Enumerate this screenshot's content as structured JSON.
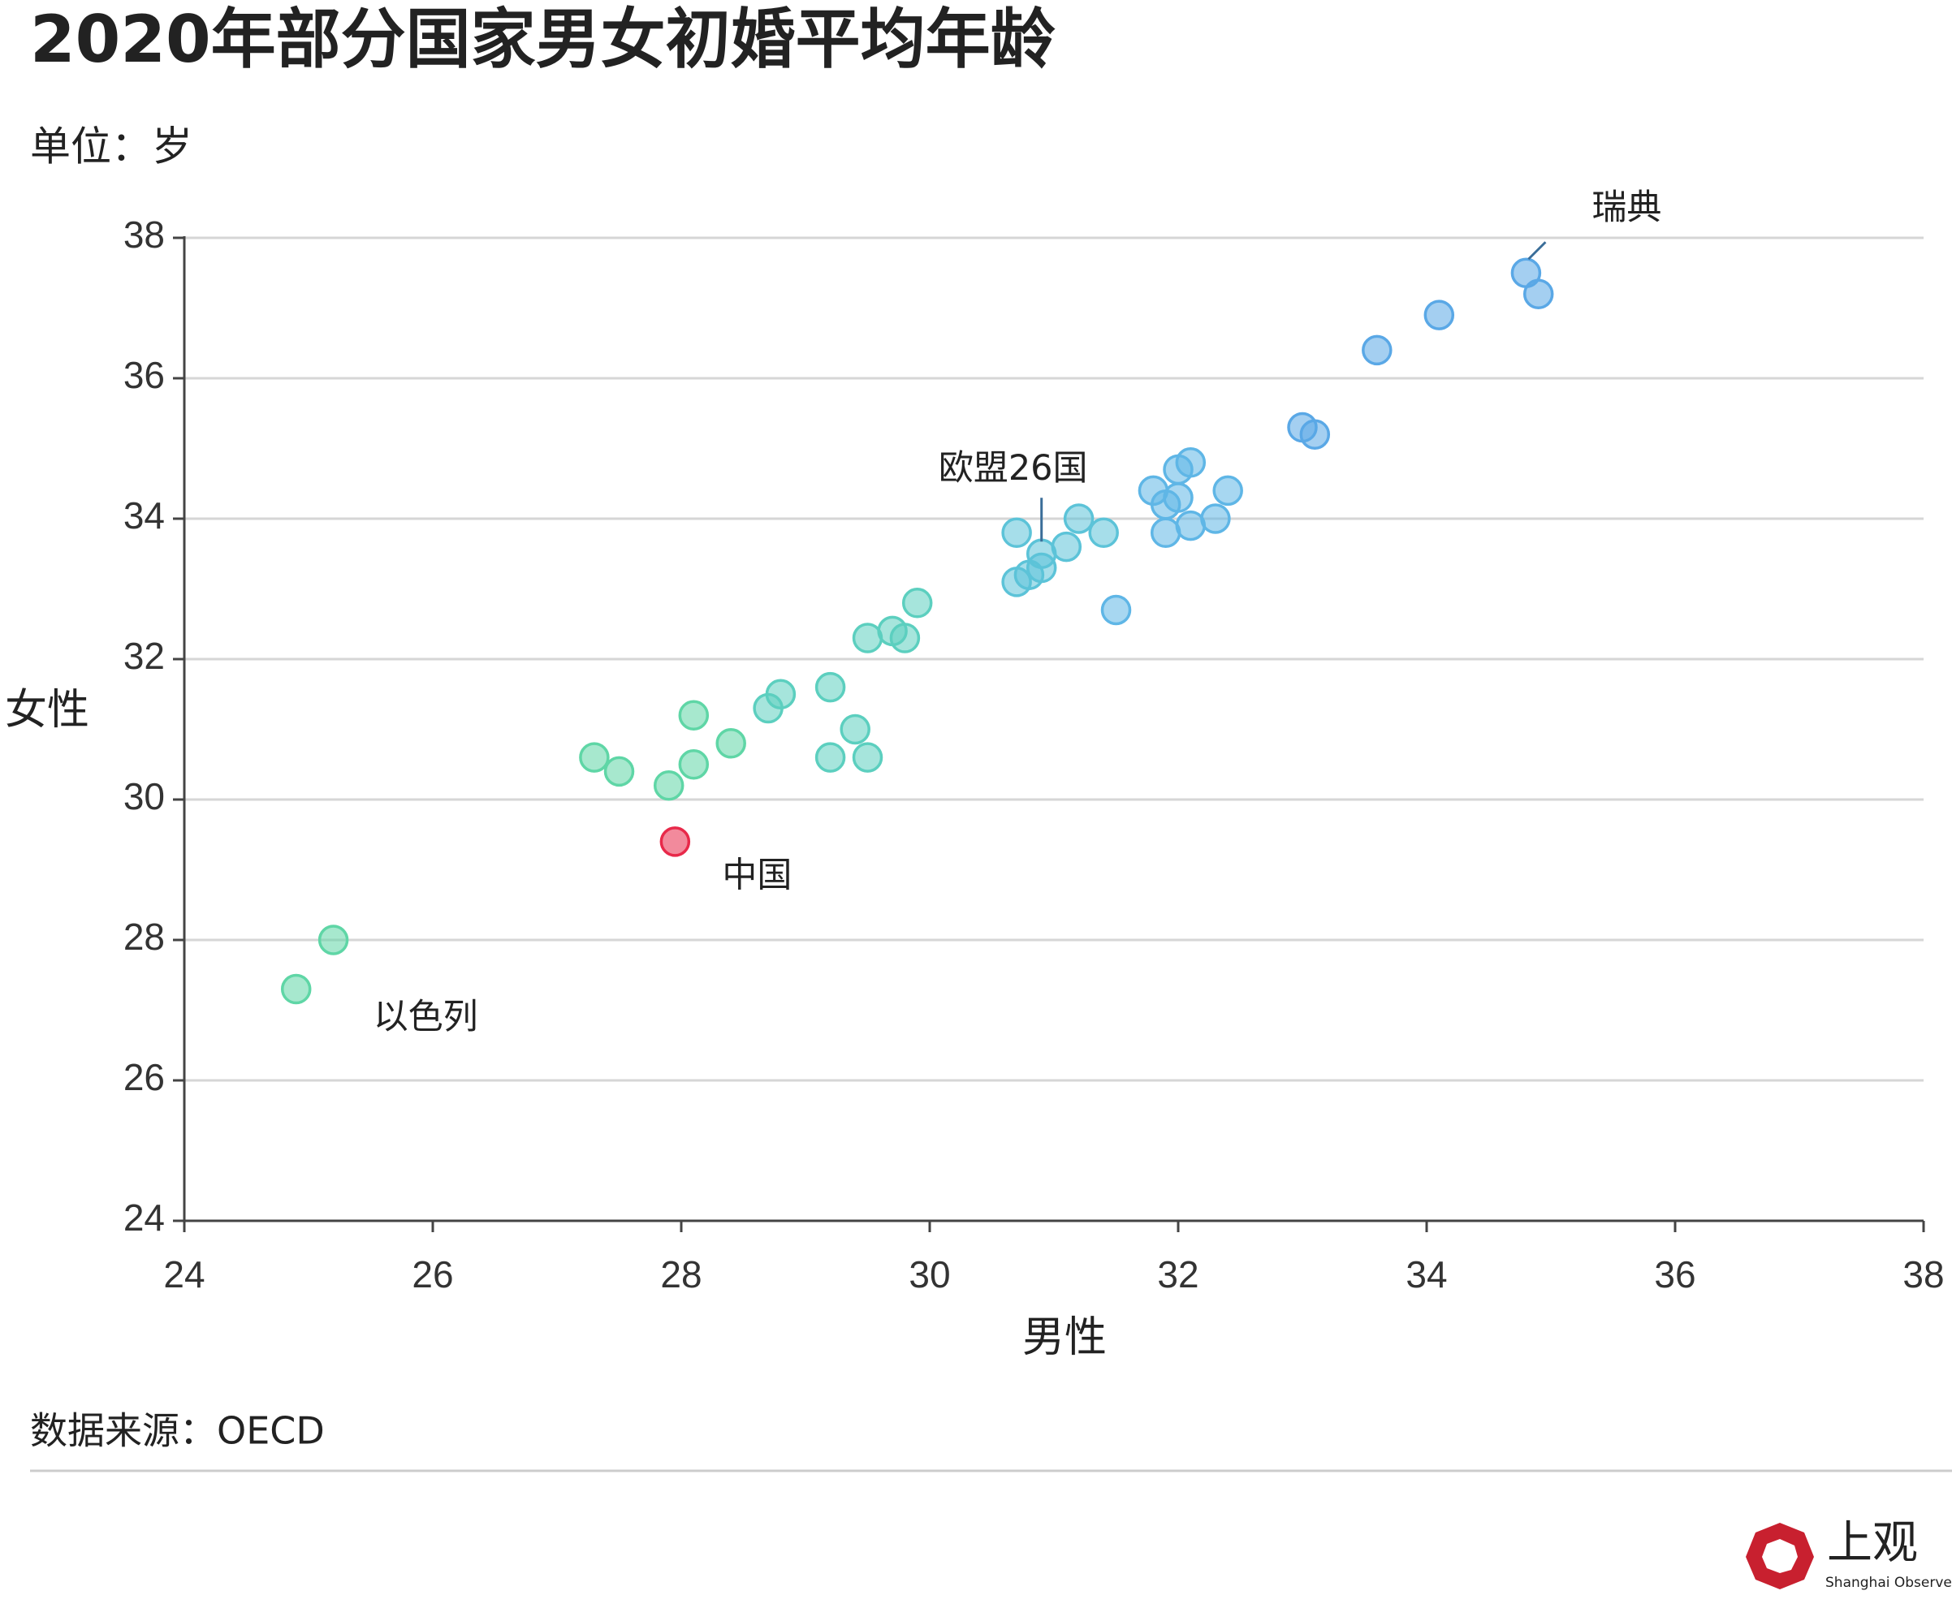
{
  "chart_data": {
    "type": "scatter",
    "title": "2020年部分国家男女初婚平均年龄",
    "subtitle": "单位：岁",
    "x_label": "男性",
    "y_label": "女性",
    "source": "数据来源：OECD",
    "logo": {
      "name": "上观",
      "name_en": "Shanghai Observer"
    },
    "x": [
      24.9,
      25.2,
      27.3,
      27.5,
      27.9,
      27.95,
      28.1,
      28.1,
      28.4,
      28.7,
      28.8,
      29.2,
      29.2,
      29.4,
      29.5,
      29.5,
      29.7,
      29.8,
      29.9,
      30.7,
      30.8,
      30.9,
      30.9,
      30.7,
      31.1,
      31.2,
      31.4,
      31.5,
      31.8,
      31.9,
      31.9,
      32.0,
      32.0,
      32.1,
      32.1,
      32.3,
      32.4,
      33.0,
      33.1,
      33.6,
      34.1,
      34.8,
      34.9
    ],
    "values": [
      27.3,
      28.0,
      30.6,
      30.4,
      30.2,
      29.4,
      31.2,
      30.5,
      30.8,
      31.3,
      31.5,
      31.6,
      30.6,
      31.0,
      30.6,
      32.3,
      32.4,
      32.3,
      32.8,
      33.1,
      33.2,
      33.3,
      33.5,
      33.8,
      33.6,
      34.0,
      33.8,
      32.7,
      34.4,
      34.2,
      33.8,
      34.3,
      34.7,
      34.8,
      33.9,
      34.0,
      34.4,
      35.3,
      35.2,
      36.4,
      36.9,
      37.5,
      37.2
    ],
    "colors": [
      "#5fd6a6",
      "#5fd6a6",
      "#5fd6a6",
      "#5fd6a6",
      "#5fd6a6",
      "#e8294a",
      "#5fd6a6",
      "#5fd6a6",
      "#5fd6a6",
      "#5ccfbf",
      "#5ccfbf",
      "#5ccfbf",
      "#5ccfbf",
      "#5ccfbf",
      "#5ccfbf",
      "#5ccfbf",
      "#5ccfbf",
      "#5ccfbf",
      "#5ccfbf",
      "#5cc3d8",
      "#5cc3d8",
      "#5cc3d8",
      "#5cc3d8",
      "#5cc3d8",
      "#5cc3d8",
      "#5cc3d8",
      "#5cc3d8",
      "#5fb6e6",
      "#5fb6e6",
      "#5fb6e6",
      "#5fb6e6",
      "#5fb6e6",
      "#5fb6e6",
      "#5fb6e6",
      "#5fb6e6",
      "#5fb6e6",
      "#5fb6e6",
      "#5aa8e6",
      "#5aa8e6",
      "#5aa8e6",
      "#5aa8e6",
      "#5aa8e6",
      "#5aa8e6"
    ],
    "labels": [
      "以色列",
      null,
      null,
      null,
      null,
      "中国",
      null,
      null,
      null,
      null,
      null,
      null,
      null,
      null,
      null,
      null,
      null,
      null,
      null,
      null,
      null,
      null,
      "欧盟26国",
      null,
      null,
      null,
      null,
      null,
      null,
      null,
      null,
      null,
      null,
      null,
      null,
      null,
      null,
      null,
      null,
      null,
      null,
      "瑞典",
      null
    ],
    "xlim": [
      24,
      38
    ],
    "xticks": [
      24,
      26,
      28,
      30,
      32,
      34,
      36,
      38
    ],
    "ylim": [
      24,
      38
    ],
    "yticks": [
      24,
      26,
      28,
      30,
      32,
      34,
      36,
      38
    ],
    "grid": true
  }
}
